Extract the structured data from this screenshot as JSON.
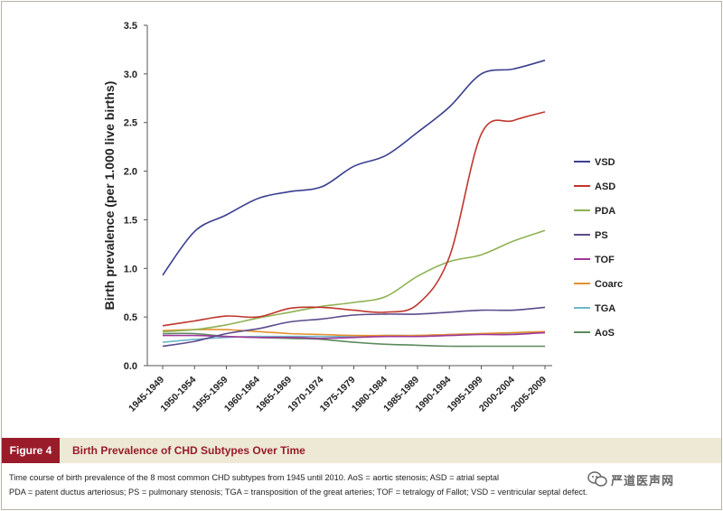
{
  "chart_data": {
    "type": "line",
    "title": "",
    "xlabel": "",
    "ylabel": "Birth prevalence (per 1.000 live births)",
    "ylim": [
      0,
      3.5
    ],
    "yticks": [
      "0.0",
      "0.5",
      "1.0",
      "1.5",
      "2.0",
      "2.5",
      "3.0",
      "3.5"
    ],
    "categories": [
      "1945-1949",
      "1950-1954",
      "1955-1959",
      "1960-1964",
      "1965-1969",
      "1970-1974",
      "1975-1979",
      "1980-1984",
      "1985-1989",
      "1990-1994",
      "1995-1999",
      "2000-2004",
      "2005-2009"
    ],
    "grid": false,
    "legend_position": "right",
    "series": [
      {
        "name": "VSD",
        "color": "#3a3f8f",
        "values": [
          0.93,
          1.38,
          1.55,
          1.72,
          1.79,
          1.84,
          2.05,
          2.16,
          2.4,
          2.66,
          3.0,
          3.05,
          3.14
        ]
      },
      {
        "name": "ASD",
        "color": "#c0362c",
        "values": [
          0.41,
          0.46,
          0.51,
          0.5,
          0.59,
          0.6,
          0.57,
          0.55,
          0.63,
          1.12,
          2.38,
          2.52,
          2.61
        ]
      },
      {
        "name": "PDA",
        "color": "#8fb253",
        "values": [
          0.35,
          0.37,
          0.42,
          0.49,
          0.55,
          0.61,
          0.65,
          0.71,
          0.92,
          1.07,
          1.14,
          1.28,
          1.39
        ]
      },
      {
        "name": "PS",
        "color": "#5c4b8c",
        "values": [
          0.2,
          0.25,
          0.33,
          0.38,
          0.45,
          0.48,
          0.52,
          0.53,
          0.53,
          0.55,
          0.57,
          0.57,
          0.6
        ]
      },
      {
        "name": "TOF",
        "color": "#a0379a",
        "values": [
          0.31,
          0.31,
          0.3,
          0.29,
          0.29,
          0.28,
          0.29,
          0.3,
          0.3,
          0.31,
          0.32,
          0.32,
          0.34
        ]
      },
      {
        "name": "Coarc",
        "color": "#e3912d",
        "values": [
          0.36,
          0.37,
          0.37,
          0.35,
          0.33,
          0.32,
          0.31,
          0.31,
          0.31,
          0.32,
          0.33,
          0.34,
          0.35
        ]
      },
      {
        "name": "TGA",
        "color": "#6fb7c9",
        "values": [
          0.24,
          0.27,
          0.29,
          0.3,
          0.3,
          0.3,
          0.3,
          0.31,
          0.31,
          0.32,
          0.33,
          0.33,
          0.34
        ]
      },
      {
        "name": "AoS",
        "color": "#5c8a5f",
        "values": [
          0.33,
          0.33,
          0.3,
          0.29,
          0.28,
          0.27,
          0.24,
          0.22,
          0.21,
          0.2,
          0.2,
          0.2,
          0.2
        ]
      }
    ]
  },
  "figure": {
    "label": "Figure 4",
    "title": "Birth Prevalence of CHD Subtypes Over Time",
    "caption_line1": "Time course of birth prevalence of the 8 most common CHD subtypes from 1945 until 2010. AoS = aortic stenosis; ASD = atrial septal",
    "caption_line2": "PDA = patent ductus arteriosus; PS = pulmonary stenosis; TGA = transposition of the great arteries; TOF = tetralogy of Fallot; VSD = ventricular septal defect."
  },
  "watermark": {
    "text": "严道医声网",
    "icon": "wechat-icon"
  }
}
